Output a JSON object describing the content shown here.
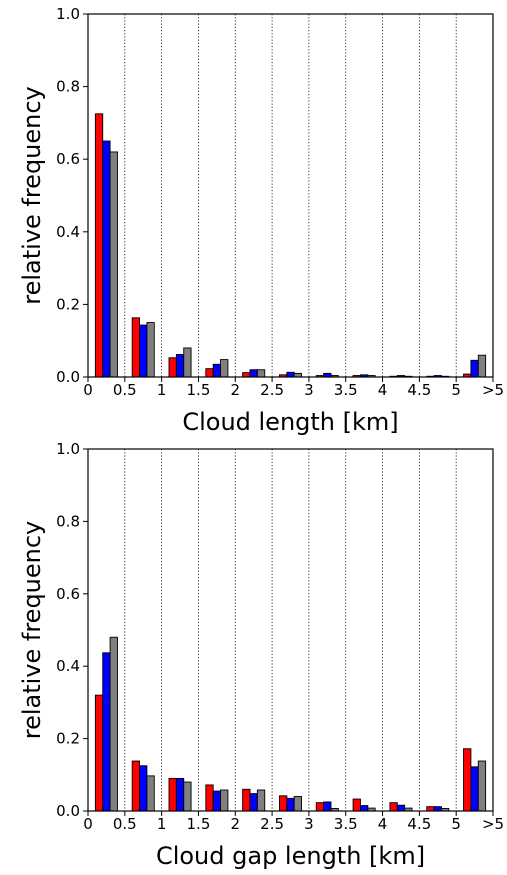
{
  "chart_data": [
    {
      "type": "bar",
      "xlabel": "Cloud length [km]",
      "ylabel": "relative frequency",
      "ylim": [
        0,
        1.0
      ],
      "xlim": [
        0,
        5.5
      ],
      "yticks": [
        "0.0",
        "0.2",
        "0.4",
        "0.6",
        "0.8",
        "1.0"
      ],
      "xtick_labels": [
        "0",
        "0.5",
        "1",
        "1.5",
        "2",
        "2.5",
        "3",
        "3.5",
        "4",
        "4.5",
        "5",
        ">5"
      ],
      "grid": "vertical dotted lines at bin edges",
      "bin_edges": [
        0,
        0.5,
        1,
        1.5,
        2,
        2.5,
        3,
        3.5,
        4,
        4.5,
        5,
        5.5
      ],
      "series": [
        {
          "color": "#ff0000",
          "values": [
            0.725,
            0.163,
            0.053,
            0.023,
            0.012,
            0.006,
            0.004,
            0.004,
            0.002,
            0.002,
            0.008
          ]
        },
        {
          "color": "#0000ff",
          "values": [
            0.65,
            0.143,
            0.062,
            0.035,
            0.02,
            0.013,
            0.01,
            0.006,
            0.004,
            0.004,
            0.046
          ]
        },
        {
          "color": "#808080",
          "values": [
            0.62,
            0.15,
            0.08,
            0.048,
            0.02,
            0.01,
            0.004,
            0.004,
            0.002,
            0.002,
            0.06
          ]
        }
      ]
    },
    {
      "type": "bar",
      "xlabel": "Cloud gap length [km]",
      "ylabel": "relative frequency",
      "ylim": [
        0,
        1.0
      ],
      "xlim": [
        0,
        5.5
      ],
      "yticks": [
        "0.0",
        "0.2",
        "0.4",
        "0.6",
        "0.8",
        "1.0"
      ],
      "xtick_labels": [
        "0",
        "0.5",
        "1",
        "1.5",
        "2",
        "2.5",
        "3",
        "3.5",
        "4",
        "4.5",
        "5",
        ">5"
      ],
      "grid": "vertical dotted lines at bin edges",
      "bin_edges": [
        0,
        0.5,
        1,
        1.5,
        2,
        2.5,
        3,
        3.5,
        4,
        4.5,
        5,
        5.5
      ],
      "series": [
        {
          "color": "#ff0000",
          "values": [
            0.32,
            0.138,
            0.09,
            0.072,
            0.06,
            0.042,
            0.023,
            0.033,
            0.023,
            0.012,
            0.172
          ]
        },
        {
          "color": "#0000ff",
          "values": [
            0.437,
            0.125,
            0.09,
            0.055,
            0.048,
            0.035,
            0.025,
            0.015,
            0.016,
            0.012,
            0.122
          ]
        },
        {
          "color": "#808080",
          "values": [
            0.48,
            0.097,
            0.08,
            0.058,
            0.058,
            0.04,
            0.007,
            0.008,
            0.008,
            0.007,
            0.138
          ]
        }
      ]
    }
  ]
}
